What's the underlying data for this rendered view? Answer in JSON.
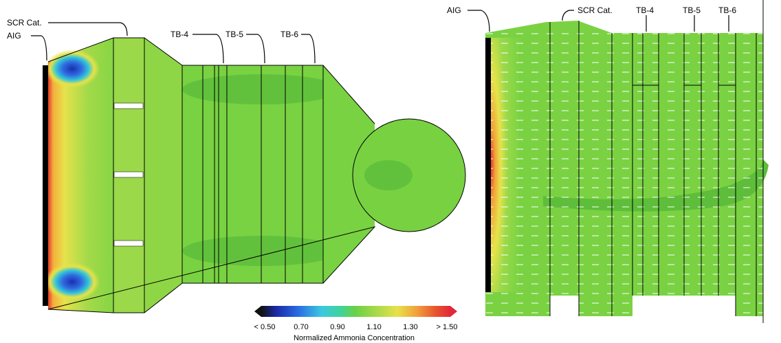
{
  "left_view": {
    "labels": {
      "scr_cat": "SCR Cat.",
      "aig": "AIG",
      "tb4": "TB-4",
      "tb5": "TB-5",
      "tb6": "TB-6"
    }
  },
  "right_view": {
    "labels": {
      "aig": "AIG",
      "scr_cat": "SCR Cat.",
      "tb4": "TB-4",
      "tb5": "TB-5",
      "tb6": "TB-6"
    }
  },
  "colorbar": {
    "title": "Normalized Ammonia Concentration",
    "tick_labels": [
      "< 0.50",
      "0.70",
      "0.90",
      "1.10",
      "1.30",
      "> 1.50"
    ]
  }
}
